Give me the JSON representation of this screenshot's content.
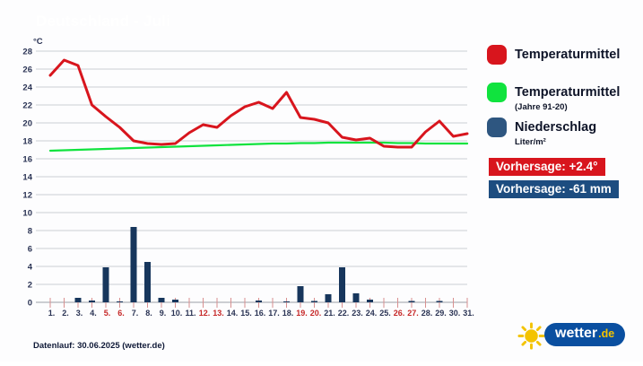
{
  "header": {
    "title": "Deutschland - Juli"
  },
  "chart_data": {
    "type": "line+bar",
    "title": "Deutschland - Juli",
    "y_axis": {
      "unit": "°C",
      "min": 0,
      "max": 28,
      "step": 2
    },
    "x_labels": [
      "1.",
      "2.",
      "3.",
      "4.",
      "5.",
      "6.",
      "7.",
      "8.",
      "9.",
      "10.",
      "11.",
      "12.",
      "13.",
      "14.",
      "15.",
      "16.",
      "17.",
      "18.",
      "19.",
      "20.",
      "21.",
      "22.",
      "23.",
      "24.",
      "25.",
      "26.",
      "27.",
      "28.",
      "29.",
      "30.",
      "31."
    ],
    "weekend_days": [
      5,
      6,
      12,
      13,
      19,
      20,
      26,
      27
    ],
    "grid": true,
    "series": [
      {
        "name": "Temperaturmittel",
        "type": "line",
        "color": "#d8151d",
        "values": [
          25.3,
          27.0,
          26.4,
          22.0,
          20.7,
          19.5,
          18.0,
          17.7,
          17.6,
          17.7,
          18.9,
          19.8,
          19.5,
          20.8,
          21.8,
          22.3,
          21.6,
          23.4,
          20.6,
          20.4,
          20.0,
          18.4,
          18.1,
          18.3,
          17.4,
          17.3,
          17.3,
          19.0,
          20.2,
          18.5,
          18.8
        ]
      },
      {
        "name": "Temperaturmittel (Jahre 91-20)",
        "type": "line",
        "color": "#10e33e",
        "values": [
          16.9,
          16.95,
          17.0,
          17.05,
          17.1,
          17.15,
          17.2,
          17.25,
          17.3,
          17.35,
          17.4,
          17.45,
          17.5,
          17.55,
          17.6,
          17.65,
          17.7,
          17.7,
          17.75,
          17.75,
          17.8,
          17.8,
          17.8,
          17.8,
          17.8,
          17.75,
          17.75,
          17.7,
          17.7,
          17.7,
          17.7
        ]
      },
      {
        "name": "Niederschlag (Liter/m²)",
        "type": "bar",
        "color": "#17365c",
        "values": [
          0,
          0,
          0.5,
          0.2,
          3.9,
          0.1,
          8.4,
          4.5,
          0.5,
          0.3,
          0,
          0,
          0,
          0,
          0,
          0.2,
          0,
          0.1,
          1.8,
          0.15,
          0.9,
          3.9,
          1.0,
          0.3,
          0,
          0,
          0.15,
          0,
          0.15,
          0,
          0
        ]
      }
    ],
    "colors": {
      "grid": "#cbcfd4",
      "zero_line": "#9aa0a6",
      "tick": "#d89090",
      "label": "#2a3354",
      "weekend_label": "#c62828"
    }
  },
  "legend": {
    "items": [
      {
        "label": "Temperaturmittel",
        "sublabel": "",
        "color": "#d8151d"
      },
      {
        "label": "Temperaturmittel",
        "sublabel": "(Jahre 91-20)",
        "color": "#10e33e"
      },
      {
        "label": "Niederschlag",
        "sublabel": "Liter/m²",
        "color": "#2e5680"
      }
    ]
  },
  "badges": [
    {
      "text": "Vorhersage: +2.4°",
      "color": "#d8151d"
    },
    {
      "text": "Vorhersage: -61 mm",
      "color": "#1d4d80"
    }
  ],
  "footer": {
    "text": "Datenlauf: 30.06.2025 (wetter.de)"
  },
  "logo": {
    "name": "wetter",
    "tld": ".de",
    "sun_color": "#f3c300",
    "pill_color": "#0a4fa0"
  }
}
